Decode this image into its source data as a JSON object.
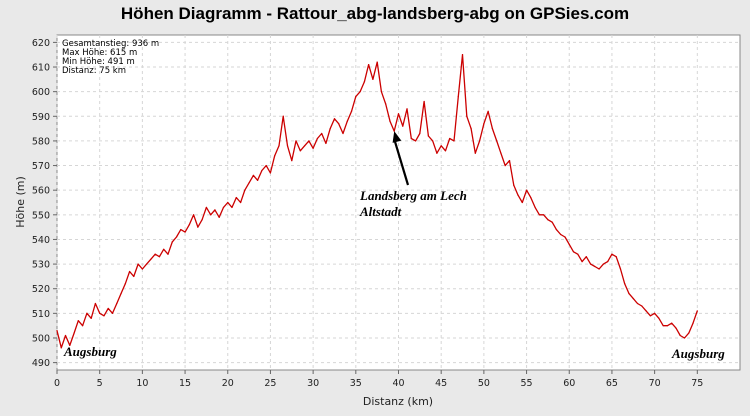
{
  "chart_data": {
    "type": "line",
    "title": "Höhen Diagramm - Rattour_abg-landsberg-abg on GPSies.com",
    "xlabel": "Distanz (km)",
    "ylabel": "Höhe (m)",
    "xlim": [
      0,
      80
    ],
    "ylim": [
      487,
      623
    ],
    "xticks": [
      0,
      5,
      10,
      15,
      20,
      25,
      30,
      35,
      40,
      45,
      50,
      55,
      60,
      65,
      70,
      75
    ],
    "yticks": [
      490,
      500,
      510,
      520,
      530,
      540,
      550,
      560,
      570,
      580,
      590,
      600,
      610,
      620
    ],
    "grid": true,
    "legend": "none",
    "line_color": "#cc0000",
    "stats": [
      "Gesamtanstieg: 936 m",
      "Max Höhe: 615 m",
      "Min Höhe: 491 m",
      "Distanz: 75 km"
    ],
    "annotations": {
      "start_label": "Augsburg",
      "end_label": "Augsburg",
      "landsberg_line1": "Landsberg am Lech",
      "landsberg_line2": "Altstadt",
      "landsberg_point": [
        39.5,
        584
      ]
    },
    "series": [
      {
        "points": [
          [
            0,
            503
          ],
          [
            0.5,
            496
          ],
          [
            1,
            501
          ],
          [
            1.5,
            497
          ],
          [
            2,
            502
          ],
          [
            2.5,
            507
          ],
          [
            3,
            505
          ],
          [
            3.5,
            510
          ],
          [
            4,
            508
          ],
          [
            4.5,
            514
          ],
          [
            5,
            510
          ],
          [
            5.5,
            509
          ],
          [
            6,
            512
          ],
          [
            6.5,
            510
          ],
          [
            7,
            514
          ],
          [
            7.5,
            518
          ],
          [
            8,
            522
          ],
          [
            8.5,
            527
          ],
          [
            9,
            525
          ],
          [
            9.5,
            530
          ],
          [
            10,
            528
          ],
          [
            10.5,
            530
          ],
          [
            11,
            532
          ],
          [
            11.5,
            534
          ],
          [
            12,
            533
          ],
          [
            12.5,
            536
          ],
          [
            13,
            534
          ],
          [
            13.5,
            539
          ],
          [
            14,
            541
          ],
          [
            14.5,
            544
          ],
          [
            15,
            543
          ],
          [
            15.5,
            546
          ],
          [
            16,
            550
          ],
          [
            16.5,
            545
          ],
          [
            17,
            548
          ],
          [
            17.5,
            553
          ],
          [
            18,
            550
          ],
          [
            18.5,
            552
          ],
          [
            19,
            549
          ],
          [
            19.5,
            553
          ],
          [
            20,
            555
          ],
          [
            20.5,
            553
          ],
          [
            21,
            557
          ],
          [
            21.5,
            555
          ],
          [
            22,
            560
          ],
          [
            22.5,
            563
          ],
          [
            23,
            566
          ],
          [
            23.5,
            564
          ],
          [
            24,
            568
          ],
          [
            24.5,
            570
          ],
          [
            25,
            567
          ],
          [
            25.5,
            574
          ],
          [
            26,
            578
          ],
          [
            26.5,
            590
          ],
          [
            27,
            578
          ],
          [
            27.5,
            572
          ],
          [
            28,
            580
          ],
          [
            28.5,
            576
          ],
          [
            29,
            578
          ],
          [
            29.5,
            580
          ],
          [
            30,
            577
          ],
          [
            30.5,
            581
          ],
          [
            31,
            583
          ],
          [
            31.5,
            579
          ],
          [
            32,
            585
          ],
          [
            32.5,
            589
          ],
          [
            33,
            587
          ],
          [
            33.5,
            583
          ],
          [
            34,
            588
          ],
          [
            34.5,
            592
          ],
          [
            35,
            598
          ],
          [
            35.5,
            600
          ],
          [
            36,
            604
          ],
          [
            36.5,
            611
          ],
          [
            37,
            605
          ],
          [
            37.5,
            612
          ],
          [
            38,
            600
          ],
          [
            38.5,
            595
          ],
          [
            39,
            588
          ],
          [
            39.5,
            584
          ],
          [
            40,
            591
          ],
          [
            40.5,
            586
          ],
          [
            41,
            593
          ],
          [
            41.5,
            581
          ],
          [
            42,
            580
          ],
          [
            42.5,
            583
          ],
          [
            43,
            596
          ],
          [
            43.5,
            582
          ],
          [
            44,
            580
          ],
          [
            44.5,
            575
          ],
          [
            45,
            578
          ],
          [
            45.5,
            576
          ],
          [
            46,
            581
          ],
          [
            46.5,
            580
          ],
          [
            47,
            598
          ],
          [
            47.5,
            615
          ],
          [
            48,
            590
          ],
          [
            48.5,
            585
          ],
          [
            49,
            575
          ],
          [
            49.5,
            580
          ],
          [
            50,
            587
          ],
          [
            50.5,
            592
          ],
          [
            51,
            585
          ],
          [
            51.5,
            580
          ],
          [
            52,
            575
          ],
          [
            52.5,
            570
          ],
          [
            53,
            572
          ],
          [
            53.5,
            562
          ],
          [
            54,
            558
          ],
          [
            54.5,
            555
          ],
          [
            55,
            560
          ],
          [
            55.5,
            557
          ],
          [
            56,
            553
          ],
          [
            56.5,
            550
          ],
          [
            57,
            550
          ],
          [
            57.5,
            548
          ],
          [
            58,
            547
          ],
          [
            58.5,
            544
          ],
          [
            59,
            542
          ],
          [
            59.5,
            541
          ],
          [
            60,
            538
          ],
          [
            60.5,
            535
          ],
          [
            61,
            534
          ],
          [
            61.5,
            531
          ],
          [
            62,
            533
          ],
          [
            62.5,
            530
          ],
          [
            63,
            529
          ],
          [
            63.5,
            528
          ],
          [
            64,
            530
          ],
          [
            64.5,
            531
          ],
          [
            65,
            534
          ],
          [
            65.5,
            533
          ],
          [
            66,
            528
          ],
          [
            66.5,
            522
          ],
          [
            67,
            518
          ],
          [
            67.5,
            516
          ],
          [
            68,
            514
          ],
          [
            68.5,
            513
          ],
          [
            69,
            511
          ],
          [
            69.5,
            509
          ],
          [
            70,
            510
          ],
          [
            70.5,
            508
          ],
          [
            71,
            505
          ],
          [
            71.5,
            505
          ],
          [
            72,
            506
          ],
          [
            72.5,
            504
          ],
          [
            73,
            501
          ],
          [
            73.5,
            500
          ],
          [
            74,
            502
          ],
          [
            74.5,
            506
          ],
          [
            75,
            511
          ]
        ]
      }
    ]
  }
}
